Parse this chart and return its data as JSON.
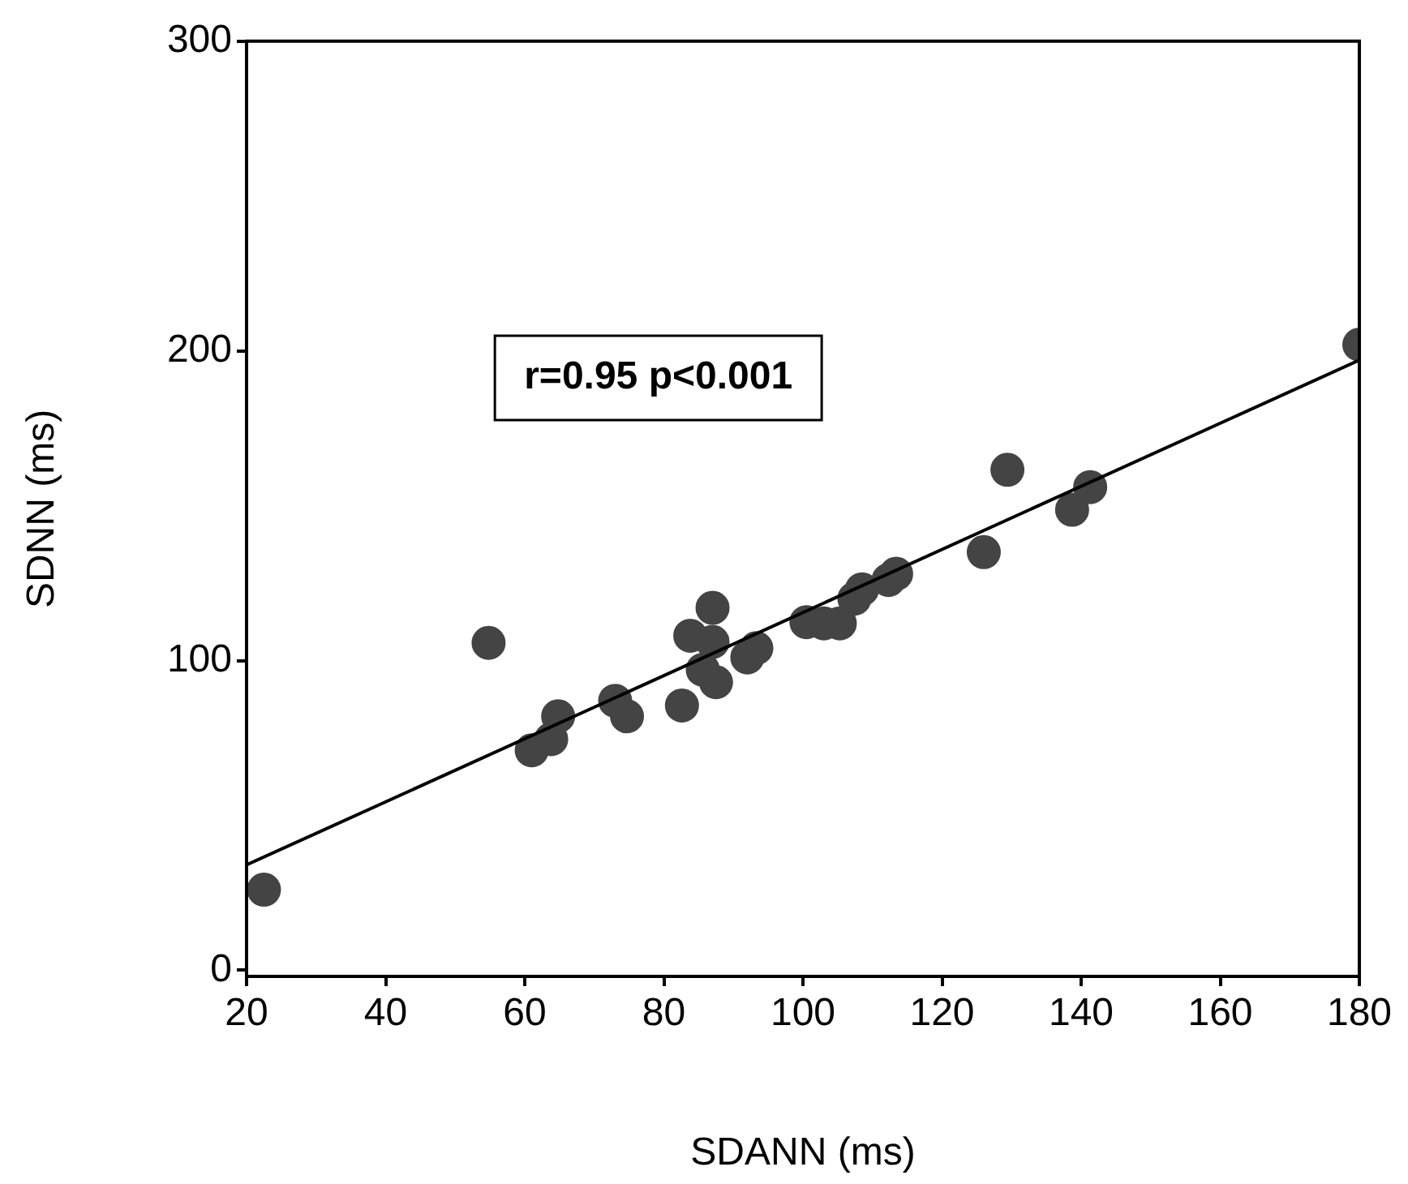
{
  "chart_data": {
    "type": "scatter",
    "xlabel": "SDANN (ms)",
    "ylabel": "SDNN (ms)",
    "xlim": [
      20,
      180
    ],
    "xticks": [
      20,
      40,
      60,
      80,
      100,
      120,
      140,
      160,
      180
    ],
    "ylim": [
      -2,
      300
    ],
    "yticks": [
      0,
      100,
      200,
      300
    ],
    "grid": false,
    "legend": false,
    "annotations": [
      "r=0.95 p<0.001"
    ],
    "series": [
      {
        "type": "scatter",
        "marker": "circle",
        "color": "#444444",
        "x": [
          22.5,
          54.8,
          61,
          63.8,
          64.8,
          73,
          74.7,
          82.6,
          83.8,
          87,
          87,
          85.6,
          87.5,
          92,
          93.3,
          100.5,
          103,
          105.3,
          107.4,
          108.5,
          112.3,
          113.4,
          126,
          129.4,
          138.7,
          141.3,
          180
        ],
        "values": [
          26,
          105.7,
          71,
          74.6,
          82,
          87,
          82,
          85.5,
          108,
          117,
          106,
          97,
          93,
          101,
          104,
          112.4,
          112,
          112,
          120,
          123,
          126,
          128,
          135,
          161.6,
          148.7,
          156,
          202
        ]
      },
      {
        "type": "line",
        "marker": "none",
        "color": "#000000",
        "x": [
          20,
          180
        ],
        "values": [
          34,
          197
        ]
      }
    ]
  }
}
